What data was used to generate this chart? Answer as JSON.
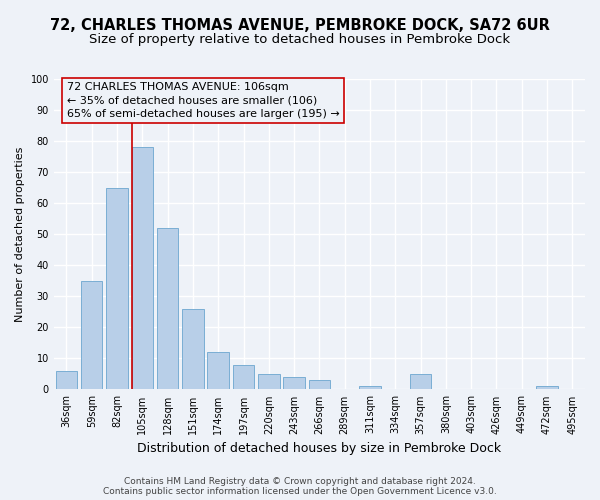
{
  "title": "72, CHARLES THOMAS AVENUE, PEMBROKE DOCK, SA72 6UR",
  "subtitle": "Size of property relative to detached houses in Pembroke Dock",
  "xlabel": "Distribution of detached houses by size in Pembroke Dock",
  "ylabel": "Number of detached properties",
  "bar_labels": [
    "36sqm",
    "59sqm",
    "82sqm",
    "105sqm",
    "128sqm",
    "151sqm",
    "174sqm",
    "197sqm",
    "220sqm",
    "243sqm",
    "266sqm",
    "289sqm",
    "311sqm",
    "334sqm",
    "357sqm",
    "380sqm",
    "403sqm",
    "426sqm",
    "449sqm",
    "472sqm",
    "495sqm"
  ],
  "bar_values": [
    6,
    35,
    65,
    78,
    52,
    26,
    12,
    8,
    5,
    4,
    3,
    0,
    1,
    0,
    5,
    0,
    0,
    0,
    0,
    1,
    0
  ],
  "bar_color": "#b8cfe8",
  "bar_edge_color": "#7aaed4",
  "ylim": [
    0,
    100
  ],
  "yticks": [
    0,
    10,
    20,
    30,
    40,
    50,
    60,
    70,
    80,
    90,
    100
  ],
  "property_line_index": 3,
  "property_line_color": "#cc0000",
  "annotation_title": "72 CHARLES THOMAS AVENUE: 106sqm",
  "annotation_line1": "← 35% of detached houses are smaller (106)",
  "annotation_line2": "65% of semi-detached houses are larger (195) →",
  "footer_line1": "Contains HM Land Registry data © Crown copyright and database right 2024.",
  "footer_line2": "Contains public sector information licensed under the Open Government Licence v3.0.",
  "background_color": "#eef2f8",
  "grid_color": "#ffffff",
  "title_fontsize": 10.5,
  "subtitle_fontsize": 9.5,
  "xlabel_fontsize": 9,
  "ylabel_fontsize": 8,
  "tick_fontsize": 7,
  "annotation_fontsize": 8,
  "footer_fontsize": 6.5,
  "annotation_box_edge_color": "#cc0000"
}
